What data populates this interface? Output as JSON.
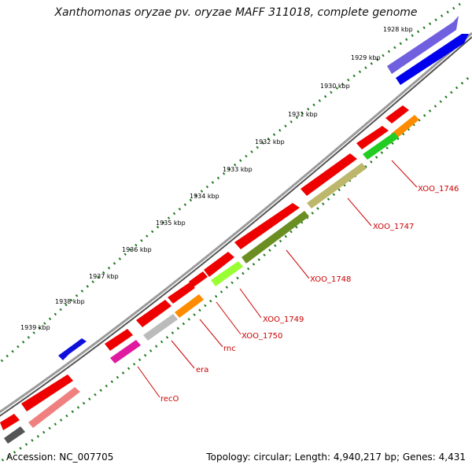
{
  "title": "Xanthomonas oryzae pv. oryzae MAFF 311018, complete genome",
  "footer": {
    "accession": "Accession: NC_007705",
    "summary": "Topology: circular; Length: 4,940,217 bp; Genes: 4,431"
  },
  "kbp_ticks": [
    "1928 kbp",
    "1929 kbp",
    "1930 kbp",
    "1931 kbp",
    "1932 kbp",
    "1933 kbp",
    "1934 kbp",
    "1935 kbp",
    "1936 kbp",
    "1937 kbp",
    "1938 kbp",
    "1939 kbp"
  ],
  "gene_labels": [
    "XOO_1746",
    "XOO_1747",
    "XOO_1748",
    "XOO_1749",
    "XOO_1750",
    "rnc",
    "era",
    "recO"
  ],
  "colors": {
    "label_red": "#cc0000",
    "tick_green": "#1a7a1a",
    "backbone": "#808080",
    "outer_blue": "#0000ff",
    "red_gene": "#ff0000"
  }
}
